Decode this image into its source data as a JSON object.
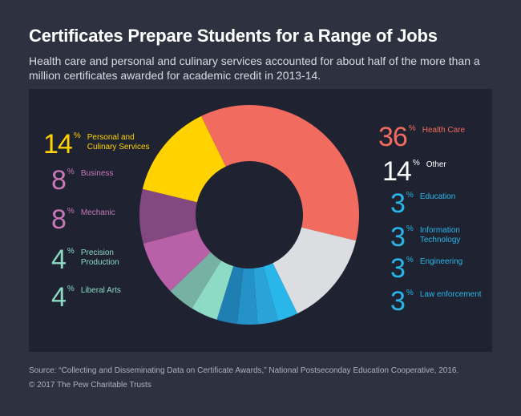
{
  "title": "Certificates Prepare Students for a Range of Jobs",
  "subtitle": "Health care and personal and culinary services accounted for about half of the more than a million certificates awarded for academic credit in 2013-14.",
  "source": "Source: “Collecting and Disseminating Data on Certificate Awards,” National Postseconday Education Cooperative, 2016.",
  "copyright": "© 2017 The Pew Charitable Trusts",
  "chart_data": {
    "type": "pie",
    "title": "Certificates Prepare Students for a Range of Jobs",
    "unit": "%",
    "categories": [
      "Health Care",
      "Other",
      "Education",
      "Information Technology",
      "Engineering",
      "Law enforcement",
      "Liberal Arts",
      "Precision Production",
      "Mechanic",
      "Business",
      "Personal and Culinary Services"
    ],
    "values": [
      36,
      14,
      3,
      3,
      3,
      3,
      4,
      4,
      8,
      8,
      14
    ],
    "colors": [
      "#f26b5f",
      "#dcdde1",
      "#29b6e8",
      "#2aa3d8",
      "#2492c6",
      "#1f7fb3",
      "#8ddac5",
      "#76b1a3",
      "#b860a8",
      "#83487f",
      "#ffd200"
    ],
    "labels": [
      {
        "num": "36",
        "pct": "%",
        "label": "Health Care",
        "color": "#f26b5f",
        "side": "right"
      },
      {
        "num": "14",
        "pct": "%",
        "label": "Other",
        "color": "#ffffff",
        "side": "right"
      },
      {
        "num": "3",
        "pct": "%",
        "label": "Education",
        "color": "#29b6e8",
        "side": "right"
      },
      {
        "num": "3",
        "pct": "%",
        "label": "Information\nTechnology",
        "color": "#29b6e8",
        "side": "right"
      },
      {
        "num": "3",
        "pct": "%",
        "label": "Engineering",
        "color": "#29b6e8",
        "side": "right"
      },
      {
        "num": "3",
        "pct": "%",
        "label": "Law enforcement",
        "color": "#29b6e8",
        "side": "right"
      },
      {
        "num": "14",
        "pct": "%",
        "label": "Personal and\nCulinary Services",
        "color": "#ffd200",
        "side": "left"
      },
      {
        "num": "8",
        "pct": "%",
        "label": "Business",
        "color": "#c878b8",
        "side": "left"
      },
      {
        "num": "8",
        "pct": "%",
        "label": "Mechanic",
        "color": "#c878b8",
        "side": "left"
      },
      {
        "num": "4",
        "pct": "%",
        "label": "Precision\nProduction",
        "color": "#8ddac5",
        "side": "left"
      },
      {
        "num": "4",
        "pct": "%",
        "label": "Liberal Arts",
        "color": "#8ddac5",
        "side": "left"
      }
    ]
  }
}
